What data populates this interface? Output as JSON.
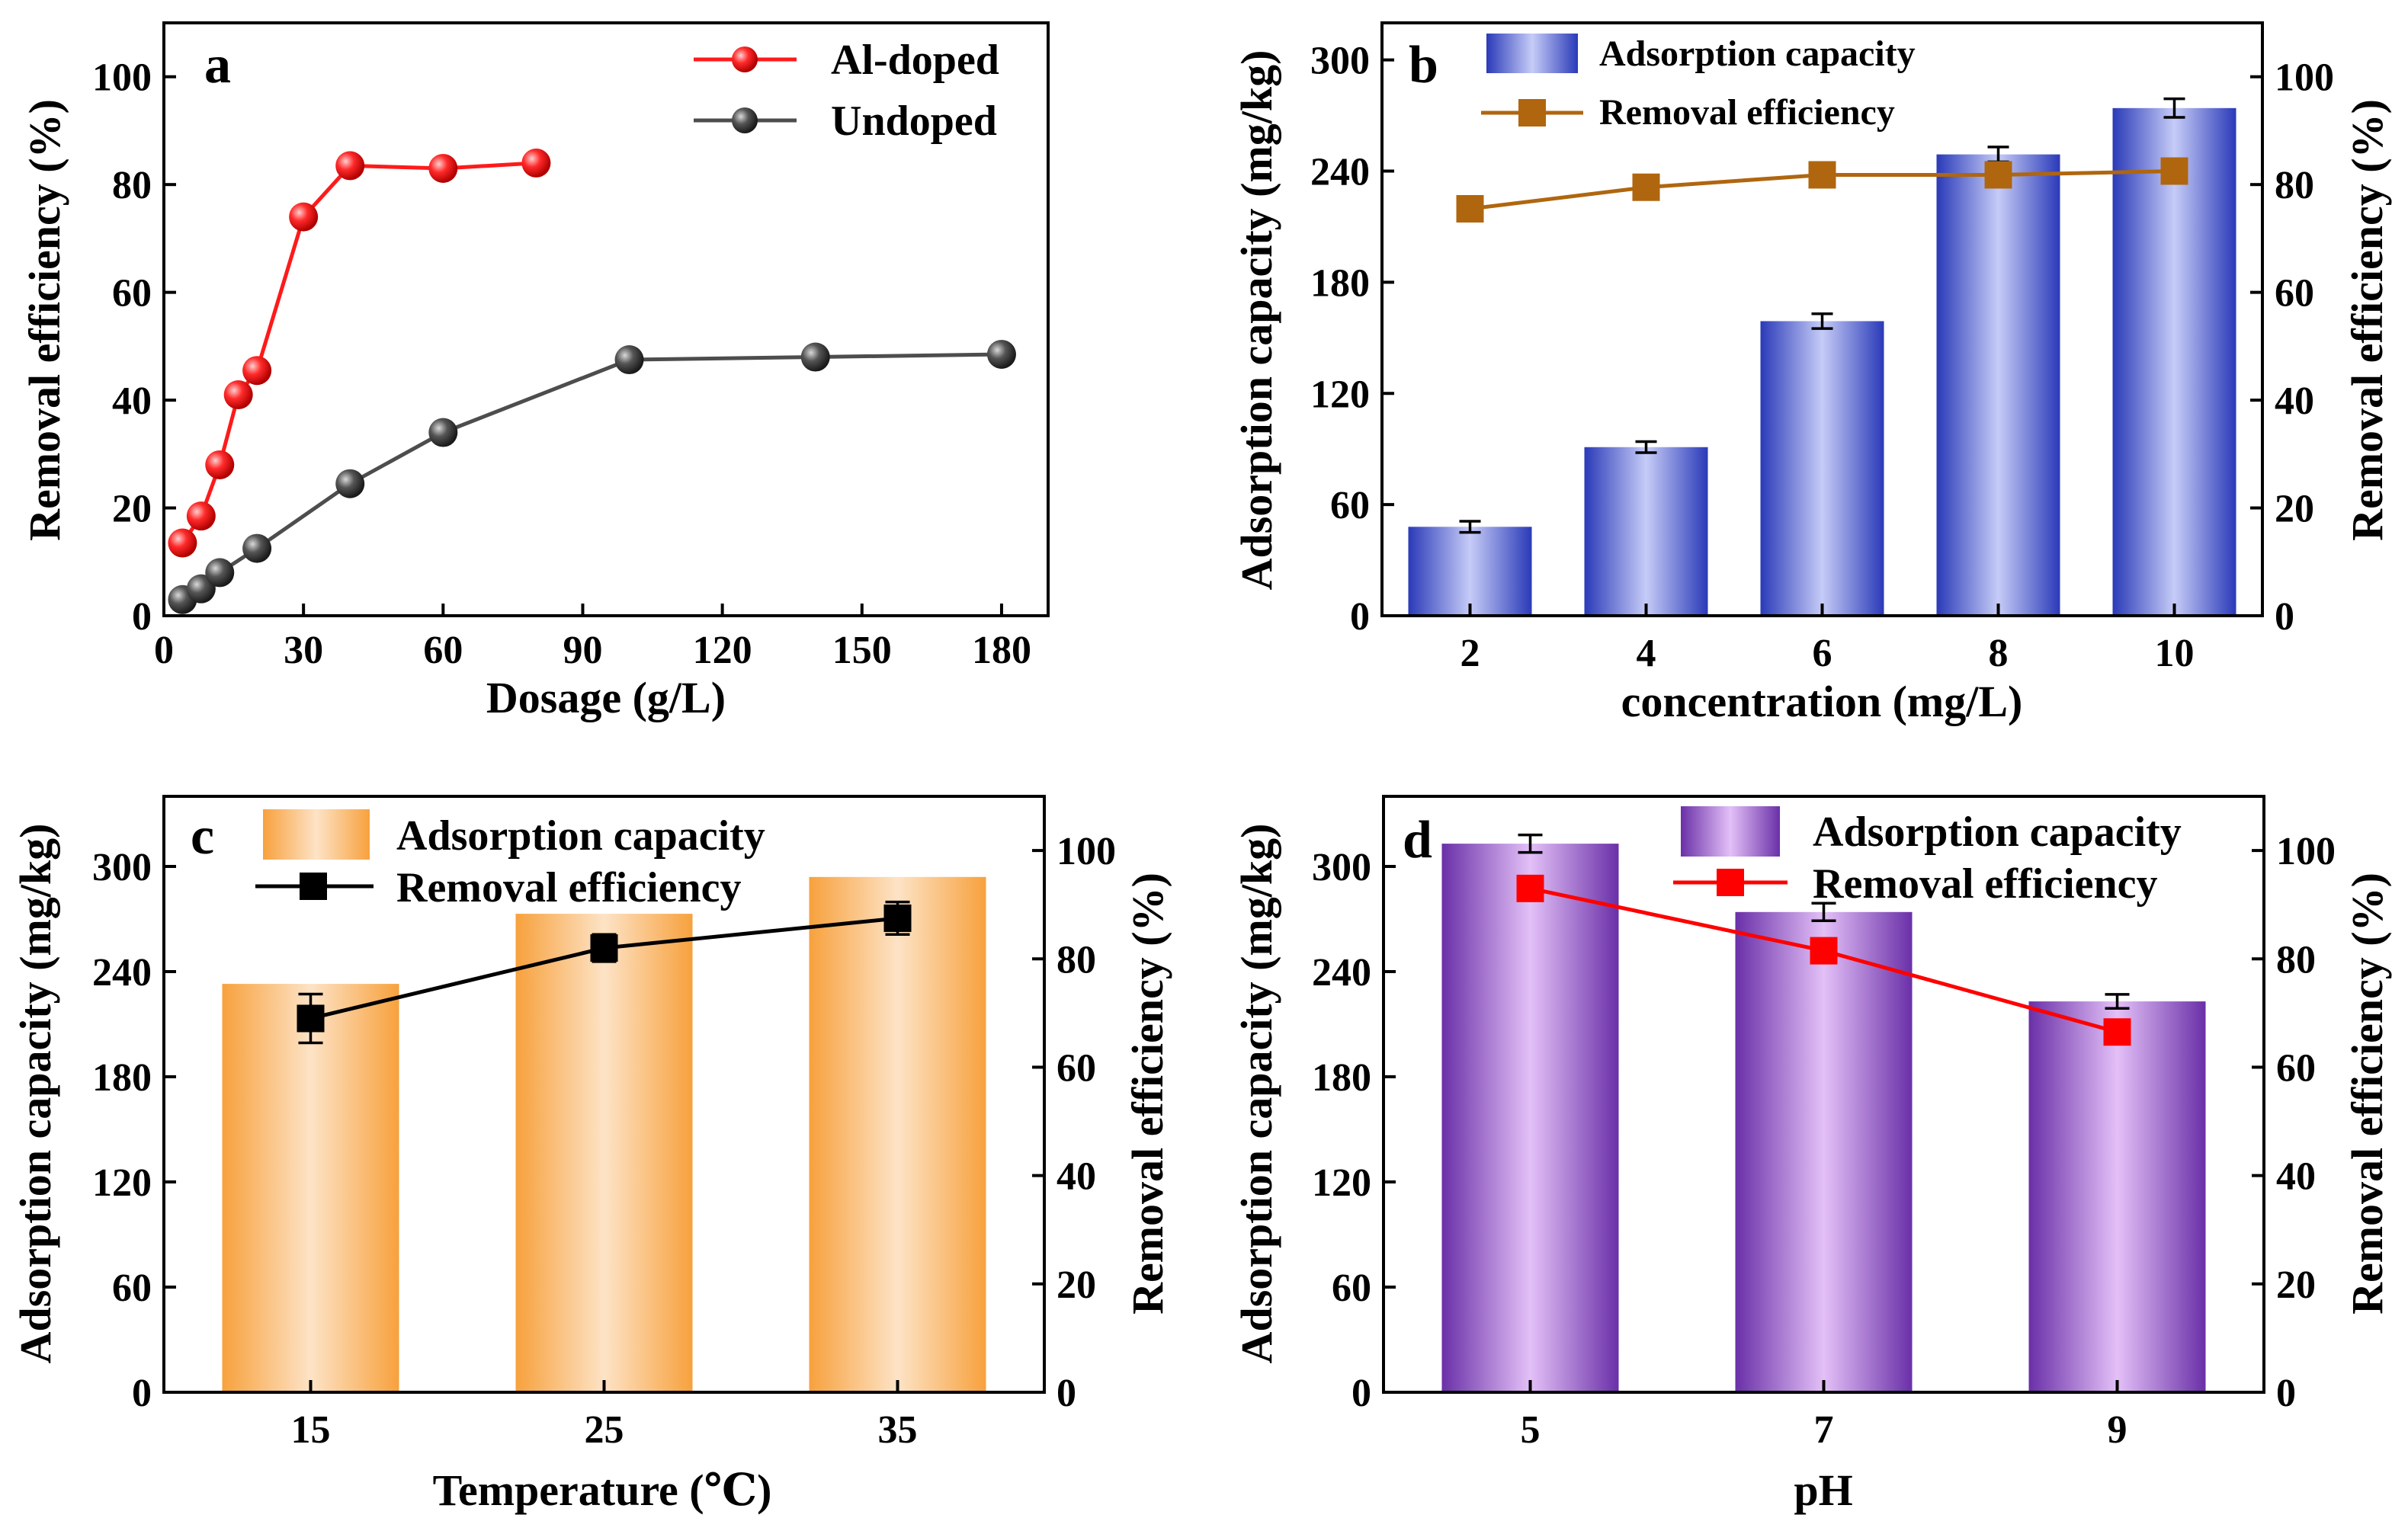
{
  "colors": {
    "al_doped": "#ff1a1a",
    "undoped": "#4d4d4d",
    "panel_b_line": "#b0660f",
    "panel_b_bar_edge": "#2a3ab8",
    "panel_b_bar_mid": "#c6ccf7",
    "panel_c_bar_edge": "#f7a13d",
    "panel_c_bar_mid": "#fde3c6",
    "panel_c_line": "#000000",
    "panel_d_bar_edge": "#6a30a8",
    "panel_d_bar_mid": "#e3c0f7",
    "panel_d_line": "#ff0000"
  },
  "chart_data": [
    {
      "panel": "a",
      "type": "line",
      "xlabel": "Dosage (g/L)",
      "ylabel": "Removal efficiency (%)",
      "xlim": [
        0,
        190
      ],
      "ylim": [
        0,
        110
      ],
      "xticks": [
        0,
        30,
        60,
        90,
        120,
        150,
        180
      ],
      "yticks": [
        0,
        20,
        40,
        60,
        80,
        100
      ],
      "legend_position": "top-right",
      "series": [
        {
          "name": "Al-doped",
          "x": [
            4,
            8,
            12,
            16,
            20,
            30,
            40,
            60,
            80
          ],
          "y": [
            13.5,
            18.5,
            28,
            41,
            45.5,
            74,
            83.5,
            83,
            84
          ],
          "err": [
            0,
            0,
            0,
            0,
            0,
            0,
            1.5,
            2,
            1.5
          ]
        },
        {
          "name": "Undoped",
          "x": [
            4,
            8,
            12,
            20,
            40,
            60,
            100,
            140,
            180
          ],
          "y": [
            3,
            5,
            8,
            12.5,
            24.5,
            34,
            47.5,
            48,
            48.5
          ],
          "err": [
            0,
            0,
            0,
            0,
            0,
            0,
            0,
            0,
            0
          ]
        }
      ]
    },
    {
      "panel": "b",
      "type": "bar",
      "xlabel": "concentration (mg/L)",
      "ylabel": "Adsorption capacity (mg/kg)",
      "y2label": "Removal efficiency (%)",
      "categories": [
        "2",
        "4",
        "6",
        "8",
        "10"
      ],
      "ylim": [
        0,
        320
      ],
      "yticks": [
        0,
        60,
        120,
        180,
        240,
        300
      ],
      "y2lim": [
        0,
        110
      ],
      "y2ticks": [
        0,
        20,
        40,
        60,
        80,
        100
      ],
      "legend_position": "top-left",
      "series": [
        {
          "name": "Adsorption capacity",
          "kind": "bar",
          "values": [
            48,
            91,
            159,
            249,
            274
          ],
          "err": [
            3,
            3,
            4,
            4,
            5
          ]
        },
        {
          "name": "Removal efficiency",
          "kind": "line",
          "values": [
            75.5,
            79.5,
            81.8,
            81.8,
            82.5
          ],
          "err": [
            0,
            0,
            0,
            0,
            0
          ]
        }
      ]
    },
    {
      "panel": "c",
      "type": "bar",
      "xlabel": "Temperature (℃)",
      "ylabel": "Adsorption capacity (mg/kg)",
      "y2label": "Removal efficiency (%)",
      "categories": [
        "15",
        "25",
        "35"
      ],
      "ylim": [
        0,
        340
      ],
      "yticks": [
        0,
        60,
        120,
        180,
        240,
        300
      ],
      "y2lim": [
        0,
        110
      ],
      "y2ticks": [
        0,
        20,
        40,
        60,
        80,
        100
      ],
      "legend_position": "top-left",
      "series": [
        {
          "name": "Adsorption capacity",
          "kind": "bar",
          "values": [
            233,
            273,
            294
          ],
          "err": [
            0,
            0,
            0
          ]
        },
        {
          "name": "Removal efficiency",
          "kind": "line",
          "values": [
            69,
            82,
            87.5
          ],
          "err": [
            4.5,
            2.5,
            3
          ]
        }
      ]
    },
    {
      "panel": "d",
      "type": "bar",
      "xlabel": "pH",
      "ylabel": "Adsorption capacity (mg/kg)",
      "y2label": "Removal efficiency (%)",
      "categories": [
        "5",
        "7",
        "9"
      ],
      "ylim": [
        0,
        340
      ],
      "yticks": [
        0,
        60,
        120,
        180,
        240,
        300
      ],
      "y2lim": [
        0,
        110
      ],
      "y2ticks": [
        0,
        20,
        40,
        60,
        80,
        100
      ],
      "legend_position": "top-right",
      "series": [
        {
          "name": "Adsorption capacity",
          "kind": "bar",
          "values": [
            313,
            274,
            223
          ],
          "err": [
            5,
            5,
            4
          ]
        },
        {
          "name": "Removal efficiency",
          "kind": "line",
          "values": [
            93,
            81.5,
            66.5
          ],
          "err": [
            0,
            0,
            2
          ]
        }
      ]
    }
  ]
}
